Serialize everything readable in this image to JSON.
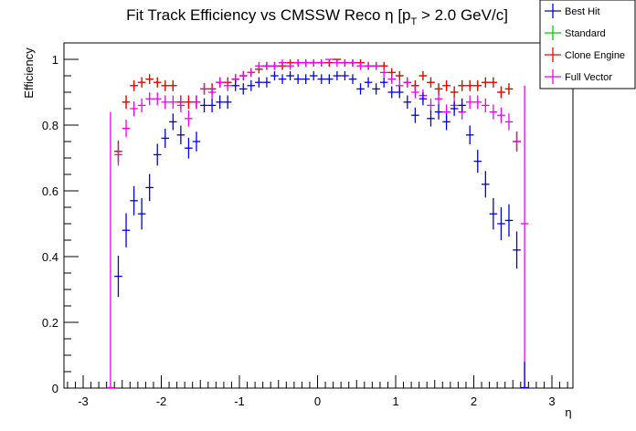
{
  "chart_data": {
    "type": "scatter",
    "title": "Fit Track Efficiency vs CMSSW Reco η [p",
    "title_sub": "T",
    "title_tail": " > 2.0 GeV/c]",
    "xlabel": "η",
    "ylabel": "Efficiency",
    "xlim": [
      -3.3,
      3.3
    ],
    "ylim": [
      0,
      1.05
    ],
    "x_ticks": [
      -3,
      -2,
      -1,
      0,
      1,
      2,
      3
    ],
    "x_tick_labels": [
      "-3",
      "-2",
      "-1",
      "0",
      "1",
      "2",
      "3"
    ],
    "y_ticks": [
      0,
      0.2,
      0.4,
      0.6,
      0.8,
      1
    ],
    "y_tick_labels": [
      "0",
      "0.2",
      "0.4",
      "0.6",
      "0.8",
      "1"
    ],
    "legend_position": "top-right",
    "bin_width": 0.1,
    "x": [
      -2.55,
      -2.45,
      -2.35,
      -2.25,
      -2.15,
      -2.05,
      -1.95,
      -1.85,
      -1.75,
      -1.65,
      -1.55,
      -1.45,
      -1.35,
      -1.25,
      -1.15,
      -1.05,
      -0.95,
      -0.85,
      -0.75,
      -0.65,
      -0.55,
      -0.45,
      -0.35,
      -0.25,
      -0.15,
      -0.05,
      0.05,
      0.15,
      0.25,
      0.35,
      0.45,
      0.55,
      0.65,
      0.75,
      0.85,
      0.95,
      1.05,
      1.15,
      1.25,
      1.35,
      1.45,
      1.55,
      1.65,
      1.75,
      1.85,
      1.95,
      2.05,
      2.15,
      2.25,
      2.35,
      2.45,
      2.55
    ],
    "series": [
      {
        "name": "Best Hit",
        "color": "#0000dd",
        "values": [
          0.34,
          0.48,
          0.57,
          0.53,
          0.61,
          0.71,
          0.76,
          0.81,
          0.77,
          0.73,
          0.75,
          0.86,
          0.86,
          0.87,
          0.87,
          0.92,
          0.91,
          0.92,
          0.93,
          0.93,
          0.95,
          0.94,
          0.95,
          0.94,
          0.94,
          0.95,
          0.94,
          0.94,
          0.95,
          0.95,
          0.94,
          0.91,
          0.93,
          0.91,
          0.93,
          0.9,
          0.9,
          0.87,
          0.83,
          0.88,
          0.82,
          0.84,
          0.81,
          0.85,
          0.86,
          0.77,
          0.69,
          0.62,
          0.53,
          0.5,
          0.51,
          0.42
        ]
      },
      {
        "name": "Standard",
        "color": "#00cc00",
        "values": [
          0.72,
          0.87,
          0.92,
          0.93,
          0.94,
          0.93,
          0.92,
          0.92,
          0.87,
          0.87,
          0.87,
          0.91,
          0.91,
          0.93,
          0.93,
          0.94,
          0.95,
          0.96,
          0.97,
          0.98,
          0.98,
          0.98,
          0.99,
          0.99,
          0.99,
          0.99,
          0.99,
          0.99,
          1.0,
          0.99,
          0.99,
          0.99,
          0.98,
          0.98,
          0.98,
          0.96,
          0.95,
          0.93,
          0.92,
          0.95,
          0.93,
          0.91,
          0.92,
          0.9,
          0.92,
          0.92,
          0.92,
          0.93,
          0.93,
          0.9,
          0.91,
          0.75
        ]
      },
      {
        "name": "Clone Engine",
        "color": "#ee0000",
        "values": [
          0.72,
          0.87,
          0.92,
          0.93,
          0.94,
          0.93,
          0.92,
          0.92,
          0.87,
          0.87,
          0.87,
          0.91,
          0.91,
          0.93,
          0.93,
          0.94,
          0.95,
          0.96,
          0.97,
          0.98,
          0.98,
          0.98,
          0.99,
          0.99,
          0.99,
          0.99,
          0.99,
          0.99,
          1.0,
          0.99,
          0.99,
          0.99,
          0.98,
          0.98,
          0.98,
          0.96,
          0.95,
          0.93,
          0.92,
          0.95,
          0.93,
          0.91,
          0.92,
          0.9,
          0.92,
          0.92,
          0.92,
          0.93,
          0.93,
          0.9,
          0.91,
          0.75
        ]
      },
      {
        "name": "Full Vector",
        "color": "#ee00ee",
        "values": [
          0.71,
          0.79,
          0.85,
          0.86,
          0.88,
          0.88,
          0.87,
          0.87,
          0.86,
          0.82,
          0.87,
          0.91,
          0.9,
          0.93,
          0.92,
          0.94,
          0.95,
          0.96,
          0.98,
          0.98,
          0.98,
          0.99,
          0.98,
          0.99,
          0.99,
          0.99,
          0.99,
          1.0,
          0.99,
          0.99,
          0.99,
          0.98,
          0.98,
          0.98,
          0.96,
          0.94,
          0.92,
          0.93,
          0.9,
          0.89,
          0.86,
          0.88,
          0.84,
          0.86,
          0.84,
          0.87,
          0.87,
          0.86,
          0.84,
          0.83,
          0.81,
          0.75
        ]
      }
    ],
    "edge_markers": [
      {
        "series": "Full Vector",
        "x": -2.65,
        "value": 0.0,
        "err_high": 0.84
      },
      {
        "series": "Full Vector",
        "x": 2.65,
        "value": 0.5,
        "err_high": 0.92
      },
      {
        "series": "Best Hit",
        "x": 2.65,
        "value": 0.0,
        "err_high": 0.08
      }
    ]
  }
}
